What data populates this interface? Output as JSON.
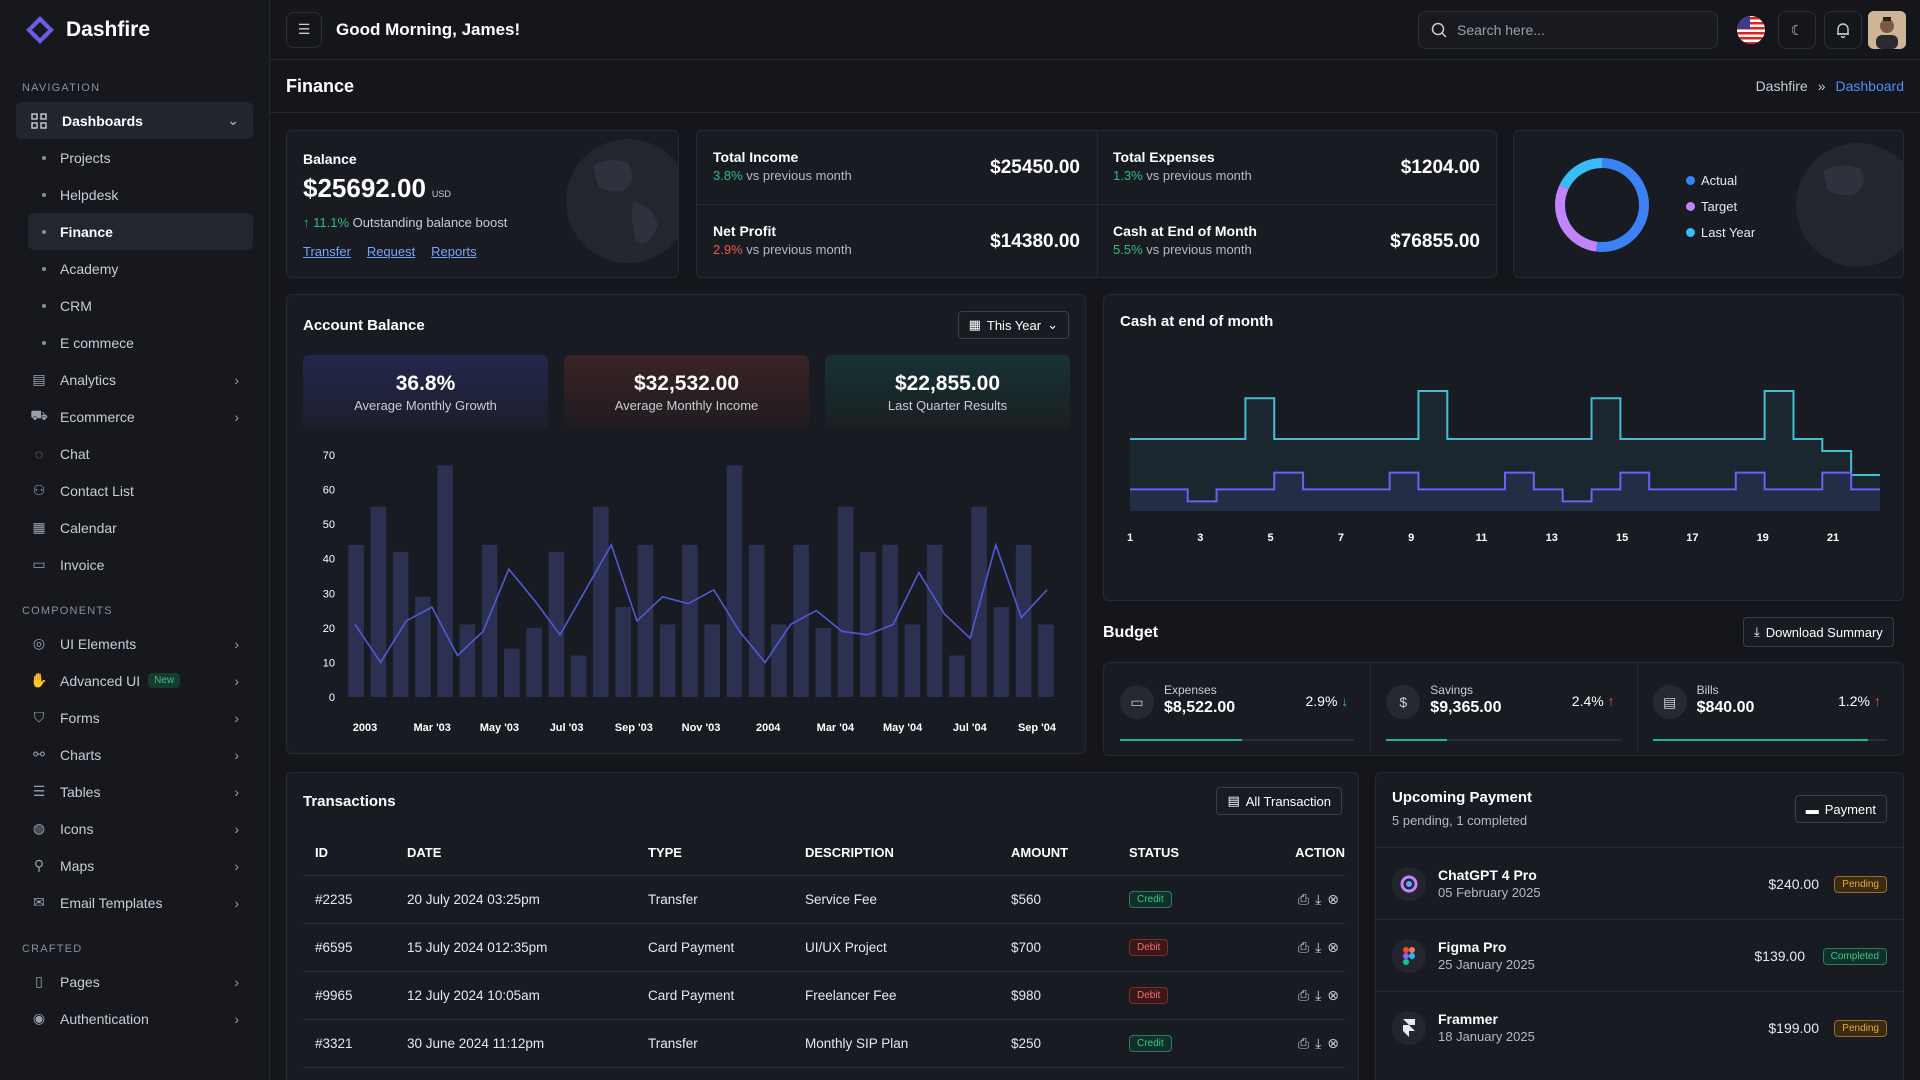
{
  "brand": {
    "name": "Dashfire"
  },
  "nav": {
    "section_navigation": "NAVIGATION",
    "dashboards": "Dashboards",
    "sub_items": [
      "Projects",
      "Helpdesk",
      "Finance",
      "Academy",
      "CRM",
      "E commece"
    ],
    "items_top": [
      "Analytics",
      "Ecommerce",
      "Chat",
      "Contact List",
      "Calendar",
      "Invoice"
    ],
    "section_components": "COMPONENTS",
    "components": [
      "UI Elements",
      "Advanced UI",
      "Forms",
      "Charts",
      "Tables",
      "Icons",
      "Maps",
      "Email Templates"
    ],
    "new_badge": "New",
    "section_crafted": "CRAFTED",
    "crafted": [
      "Pages",
      "Authentication"
    ]
  },
  "topbar": {
    "greeting": "Good Morning, James!",
    "search_placeholder": "Search here..."
  },
  "page": {
    "title": "Finance",
    "breadcrumb": [
      "Dashfire",
      "Dashboard"
    ]
  },
  "balance": {
    "label": "Balance",
    "value": "$25692.00",
    "currency": "USD",
    "change": "11.1%",
    "change_text": "Outstanding balance boost",
    "links": [
      "Transfer",
      "Request",
      "Reports"
    ]
  },
  "kpis": [
    {
      "label": "Total Income",
      "change": "3.8%",
      "trend": "up",
      "note": "vs previous month",
      "value": "$25450.00"
    },
    {
      "label": "Total Expenses",
      "change": "1.3%",
      "trend": "up",
      "note": "vs previous month",
      "value": "$1204.00"
    },
    {
      "label": "Net Profit",
      "change": "2.9%",
      "trend": "down",
      "note": "vs previous month",
      "value": "$14380.00"
    },
    {
      "label": "Cash at End of Month",
      "change": "5.5%",
      "trend": "up",
      "note": "vs previous month",
      "value": "$76855.00"
    }
  ],
  "donut": {
    "legend": [
      "Actual",
      "Target",
      "Last Year"
    ],
    "colors": [
      "#3b82f6",
      "#c084fc",
      "#38bdf8"
    ]
  },
  "account_balance": {
    "title": "Account Balance",
    "filter": "This Year",
    "tiles": [
      {
        "value": "36.8%",
        "label": "Average Monthly Growth"
      },
      {
        "value": "$32,532.00",
        "label": "Average Monthly Income"
      },
      {
        "value": "$22,855.00",
        "label": "Last Quarter Results"
      }
    ]
  },
  "cash_chart_title": "Cash at end of month",
  "budget": {
    "title": "Budget",
    "download": "Download Summary",
    "items": [
      {
        "label": "Expenses",
        "value": "$8,522.00",
        "pct": "2.9%",
        "trend": "down",
        "progress": 0.52
      },
      {
        "label": "Savings",
        "value": "$9,365.00",
        "pct": "2.4%",
        "trend": "up",
        "progress": 0.26
      },
      {
        "label": "Bills",
        "value": "$840.00",
        "pct": "1.2%",
        "trend": "up",
        "progress": 0.92
      }
    ]
  },
  "transactions": {
    "title": "Transactions",
    "all_button": "All Transaction",
    "headers": [
      "ID",
      "DATE",
      "TYPE",
      "DESCRIPTION",
      "AMOUNT",
      "STATUS",
      "ACTION"
    ],
    "rows": [
      {
        "id": "#2235",
        "date": "20 July 2024 03:25pm",
        "type": "Transfer",
        "desc": "Service Fee",
        "amount": "$560",
        "status": "Credit"
      },
      {
        "id": "#6595",
        "date": "15 July 2024 012:35pm",
        "type": "Card Payment",
        "desc": "UI/UX Project",
        "amount": "$700",
        "status": "Debit"
      },
      {
        "id": "#9965",
        "date": "12 July 2024 10:05am",
        "type": "Card Payment",
        "desc": "Freelancer Fee",
        "amount": "$980",
        "status": "Debit"
      },
      {
        "id": "#3321",
        "date": "30 June 2024 11:12pm",
        "type": "Transfer",
        "desc": "Monthly SIP Plan",
        "amount": "$250",
        "status": "Credit"
      }
    ]
  },
  "upcoming": {
    "title": "Upcoming Payment",
    "subtitle": "5 pending, 1 completed",
    "button": "Payment",
    "items": [
      {
        "name": "ChatGPT 4 Pro",
        "date": "05 February 2025",
        "amount": "$240.00",
        "status": "Pending"
      },
      {
        "name": "Figma Pro",
        "date": "25 January 2025",
        "amount": "$139.00",
        "status": "Completed"
      },
      {
        "name": "Frammer",
        "date": "18 January 2025",
        "amount": "$199.00",
        "status": "Pending"
      }
    ]
  },
  "chart_data": [
    {
      "type": "bar",
      "title": "Account Balance",
      "x_tick_labels": [
        "2003",
        "Mar '03",
        "May '03",
        "Jul '03",
        "Sep '03",
        "Nov '03",
        "2004",
        "Mar '04",
        "May '04",
        "Jul '04",
        "Sep '04"
      ],
      "ylim": [
        0,
        70
      ],
      "yticks": [
        0,
        10,
        20,
        30,
        40,
        50,
        60,
        70
      ],
      "series": [
        {
          "kind": "bar",
          "values": [
            44,
            55,
            42,
            29,
            67,
            21,
            44,
            14,
            20,
            42,
            12,
            55,
            26,
            44,
            21,
            44,
            21,
            67,
            44,
            21,
            44,
            20,
            55,
            42,
            44,
            21,
            44,
            12,
            55,
            26,
            44,
            21
          ]
        },
        {
          "kind": "line",
          "values": [
            21,
            10,
            22,
            26,
            12,
            19,
            37,
            28,
            18,
            31,
            44,
            22,
            29,
            27,
            31,
            19,
            10,
            21,
            25,
            19,
            18,
            21,
            36,
            24,
            17,
            44,
            23,
            31
          ]
        }
      ]
    },
    {
      "type": "area",
      "title": "Cash at end of month",
      "x_tick_labels": [
        "1",
        "3",
        "5",
        "7",
        "9",
        "11",
        "13",
        "15",
        "17",
        "19",
        "21"
      ],
      "series": [
        {
          "kind": "step",
          "color": "#3fbfd0",
          "values": [
            60,
            60,
            60,
            60,
            94,
            60,
            60,
            60,
            60,
            60,
            100,
            60,
            60,
            60,
            60,
            60,
            94,
            60,
            60,
            60,
            60,
            60,
            100,
            60,
            50,
            30
          ]
        },
        {
          "kind": "step",
          "color": "#6366f1",
          "values": [
            18,
            18,
            8,
            18,
            18,
            32,
            18,
            18,
            18,
            32,
            18,
            18,
            18,
            32,
            18,
            8,
            18,
            32,
            18,
            18,
            18,
            32,
            18,
            18,
            32,
            18
          ]
        }
      ]
    },
    {
      "type": "pie",
      "legend": [
        "Actual",
        "Target",
        "Last Year"
      ],
      "colors": [
        "#3b82f6",
        "#c084fc",
        "#38bdf8"
      ]
    }
  ]
}
